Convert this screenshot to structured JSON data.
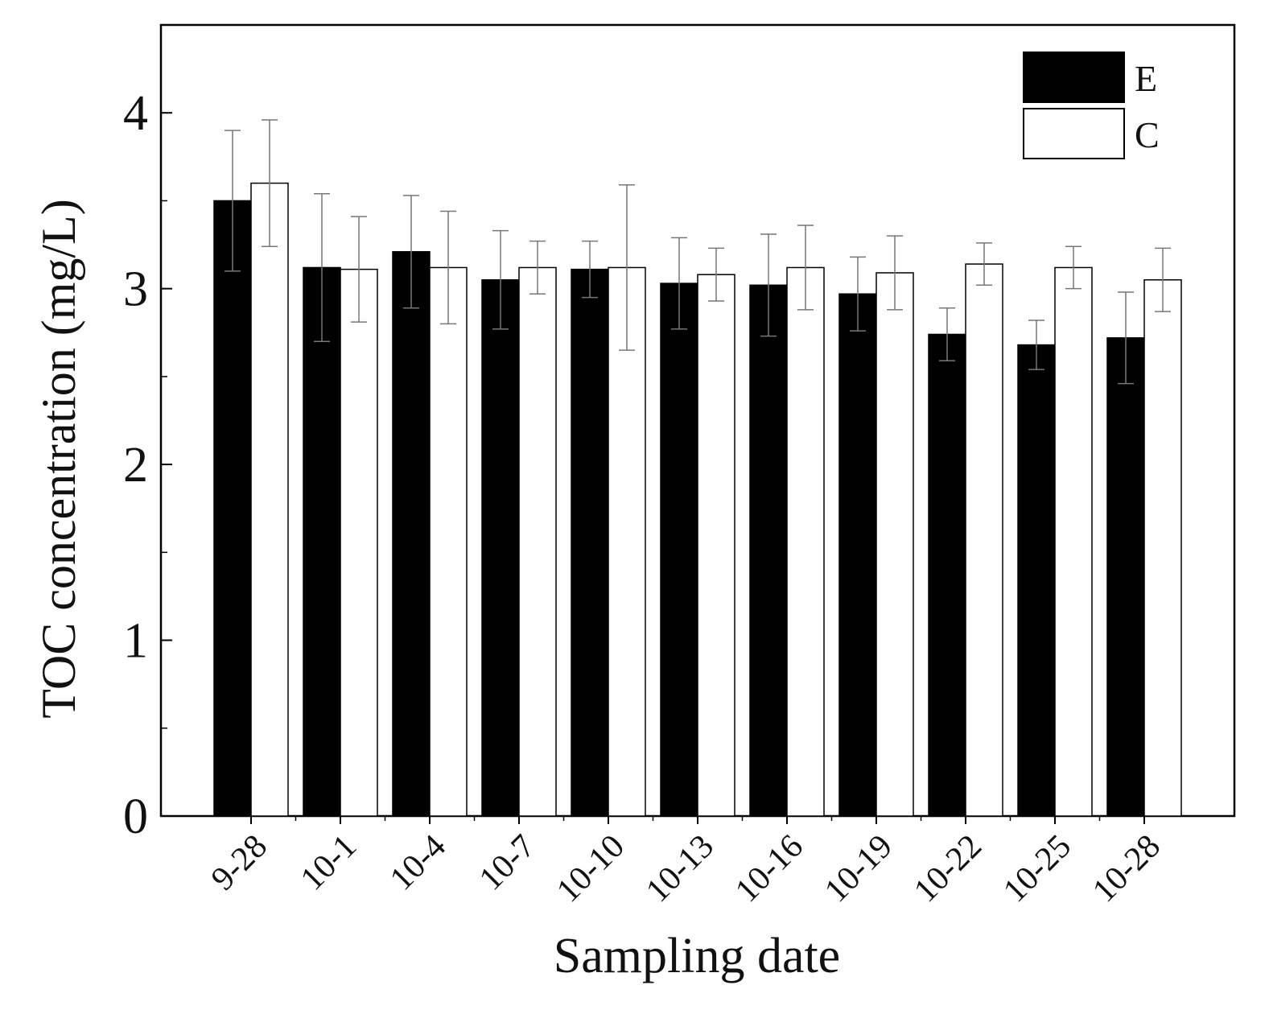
{
  "chart_data": {
    "type": "bar",
    "title": "",
    "xlabel": "Sampling date",
    "ylabel": "TOC concentration (mg/L)",
    "ylim": [
      0,
      4.5
    ],
    "yticks": [
      0,
      1,
      2,
      3,
      4
    ],
    "grid": false,
    "legend_position": "top-right",
    "categories": [
      "9-28",
      "10-1",
      "10-4",
      "10-7",
      "10-10",
      "10-13",
      "10-16",
      "10-19",
      "10-22",
      "10-25",
      "10-28"
    ],
    "series": [
      {
        "name": "E",
        "fill": "#000000",
        "values": [
          3.5,
          3.12,
          3.21,
          3.05,
          3.11,
          3.03,
          3.02,
          2.97,
          2.74,
          2.68,
          2.72
        ],
        "errors": [
          0.4,
          0.42,
          0.32,
          0.28,
          0.16,
          0.26,
          0.29,
          0.21,
          0.15,
          0.14,
          0.26
        ]
      },
      {
        "name": "C",
        "fill": "#ffffff",
        "values": [
          3.6,
          3.11,
          3.12,
          3.12,
          3.12,
          3.08,
          3.12,
          3.09,
          3.14,
          3.12,
          3.05
        ],
        "errors": [
          0.36,
          0.3,
          0.32,
          0.15,
          0.47,
          0.15,
          0.24,
          0.21,
          0.12,
          0.12,
          0.18
        ]
      }
    ]
  }
}
